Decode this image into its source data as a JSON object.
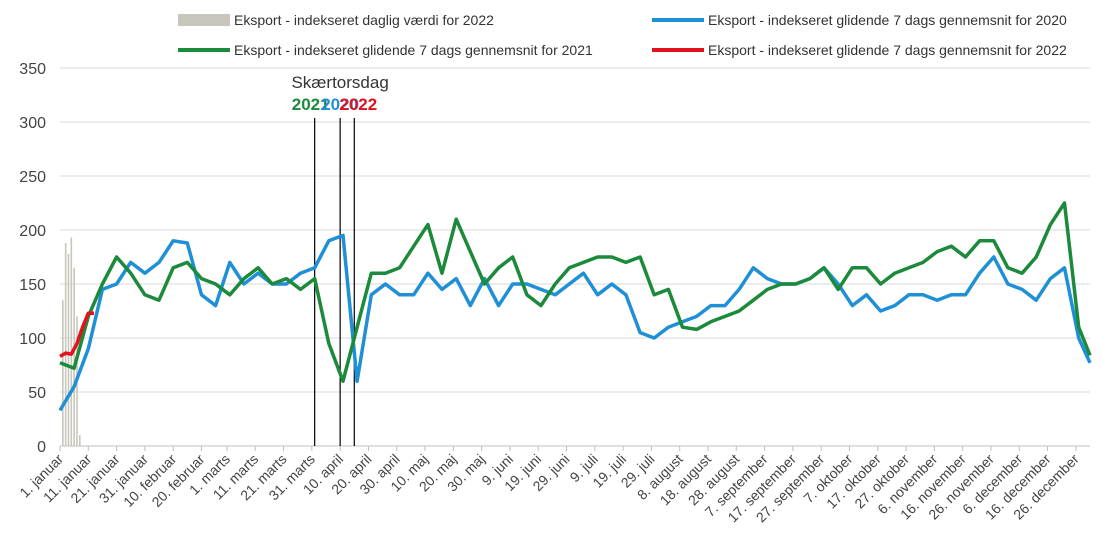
{
  "chart_data": {
    "type": "line",
    "xlim": [
      0,
      364
    ],
    "ylim": [
      0,
      350
    ],
    "yticks": [
      0,
      50,
      100,
      150,
      200,
      250,
      300,
      350
    ],
    "grid": true,
    "xticks": [
      {
        "value": 0,
        "label": "1. januar"
      },
      {
        "value": 10,
        "label": "11. januar"
      },
      {
        "value": 20,
        "label": "21. januar"
      },
      {
        "value": 30,
        "label": "31. januar"
      },
      {
        "value": 40,
        "label": "10. februar"
      },
      {
        "value": 50,
        "label": "20. februar"
      },
      {
        "value": 59,
        "label": "1. marts"
      },
      {
        "value": 69,
        "label": "11. marts"
      },
      {
        "value": 79,
        "label": "21. marts"
      },
      {
        "value": 89,
        "label": "31. marts"
      },
      {
        "value": 99,
        "label": "10. april"
      },
      {
        "value": 109,
        "label": "20. april"
      },
      {
        "value": 119,
        "label": "30. april"
      },
      {
        "value": 129,
        "label": "10. maj"
      },
      {
        "value": 139,
        "label": "20. maj"
      },
      {
        "value": 149,
        "label": "30. maj"
      },
      {
        "value": 159,
        "label": "9. juni"
      },
      {
        "value": 169,
        "label": "19. juni"
      },
      {
        "value": 179,
        "label": "29. juni"
      },
      {
        "value": 189,
        "label": "9. juli"
      },
      {
        "value": 199,
        "label": "19. juli"
      },
      {
        "value": 209,
        "label": "29. juli"
      },
      {
        "value": 219,
        "label": "8. august"
      },
      {
        "value": 229,
        "label": "18. august"
      },
      {
        "value": 239,
        "label": "28. august"
      },
      {
        "value": 249,
        "label": "7. september"
      },
      {
        "value": 259,
        "label": "17. september"
      },
      {
        "value": 269,
        "label": "27. september"
      },
      {
        "value": 279,
        "label": "7. oktober"
      },
      {
        "value": 289,
        "label": "17. oktober"
      },
      {
        "value": 299,
        "label": "27. oktober"
      },
      {
        "value": 309,
        "label": "6. november"
      },
      {
        "value": 319,
        "label": "16. november"
      },
      {
        "value": 329,
        "label": "26. november"
      },
      {
        "value": 339,
        "label": "6. december"
      },
      {
        "value": 349,
        "label": "16. december"
      },
      {
        "value": 359,
        "label": "26. december"
      }
    ],
    "series": [
      {
        "name": "Eksport - indekseret daglig værdi for 2022",
        "type": "bar",
        "color": "#c9c6bb",
        "x": [
          1,
          2,
          3,
          4,
          5,
          6,
          7
        ],
        "values": [
          135,
          188,
          178,
          193,
          165,
          120,
          10
        ]
      },
      {
        "name": "Eksport - indekseret glidende 7 dags gennemsnit for 2020",
        "type": "line",
        "color": "#1f8fd6",
        "x": [
          0,
          5,
          10,
          15,
          20,
          25,
          30,
          35,
          40,
          45,
          50,
          55,
          60,
          65,
          70,
          75,
          80,
          85,
          90,
          95,
          100,
          105,
          110,
          115,
          120,
          125,
          130,
          135,
          140,
          145,
          150,
          155,
          160,
          165,
          170,
          175,
          180,
          185,
          190,
          195,
          200,
          205,
          210,
          215,
          220,
          225,
          230,
          235,
          240,
          245,
          250,
          255,
          260,
          265,
          270,
          275,
          280,
          285,
          290,
          295,
          300,
          305,
          310,
          315,
          320,
          325,
          330,
          335,
          340,
          345,
          350,
          355,
          360,
          364
        ],
        "values": [
          33,
          55,
          90,
          145,
          150,
          170,
          160,
          170,
          190,
          188,
          140,
          130,
          170,
          150,
          160,
          150,
          150,
          160,
          165,
          190,
          195,
          60,
          140,
          150,
          140,
          140,
          160,
          145,
          155,
          130,
          155,
          130,
          150,
          150,
          145,
          140,
          150,
          160,
          140,
          150,
          140,
          105,
          100,
          110,
          115,
          120,
          130,
          130,
          145,
          165,
          155,
          150,
          150,
          155,
          165,
          150,
          130,
          140,
          125,
          130,
          140,
          140,
          135,
          140,
          140,
          160,
          175,
          150,
          145,
          135,
          155,
          165,
          100,
          77
        ]
      },
      {
        "name": "Eksport - indekseret glidende 7 dags gennemsnit for 2021",
        "type": "line",
        "color": "#1b8a3a",
        "x": [
          0,
          5,
          10,
          15,
          20,
          25,
          30,
          35,
          40,
          45,
          50,
          55,
          60,
          65,
          70,
          75,
          80,
          85,
          90,
          95,
          100,
          105,
          110,
          115,
          120,
          125,
          130,
          135,
          140,
          145,
          150,
          155,
          160,
          165,
          170,
          175,
          180,
          185,
          190,
          195,
          200,
          205,
          210,
          215,
          220,
          225,
          230,
          235,
          240,
          245,
          250,
          255,
          260,
          265,
          270,
          275,
          280,
          285,
          290,
          295,
          300,
          305,
          310,
          315,
          320,
          325,
          330,
          335,
          340,
          345,
          350,
          355,
          360,
          364
        ],
        "values": [
          77,
          72,
          120,
          150,
          175,
          160,
          140,
          135,
          165,
          170,
          155,
          150,
          140,
          155,
          165,
          150,
          155,
          145,
          155,
          95,
          60,
          110,
          160,
          160,
          165,
          185,
          205,
          160,
          210,
          180,
          150,
          165,
          175,
          140,
          130,
          150,
          165,
          170,
          175,
          175,
          170,
          175,
          140,
          145,
          110,
          108,
          115,
          120,
          125,
          135,
          145,
          150,
          150,
          155,
          165,
          145,
          165,
          165,
          150,
          160,
          165,
          170,
          180,
          185,
          175,
          190,
          190,
          165,
          160,
          175,
          205,
          225,
          110,
          84
        ]
      },
      {
        "name": "Eksport - indekseret glidende 7 dags gennemsnit for 2022",
        "type": "line",
        "color": "#e3101d",
        "x": [
          0,
          2,
          4,
          6,
          8,
          10,
          12
        ],
        "values": [
          83,
          86,
          85,
          95,
          110,
          123,
          123
        ]
      }
    ],
    "annotations": {
      "title": "Skærtorsdag",
      "labels": [
        {
          "text": "2021",
          "x": 90,
          "color": "#1b8a3a"
        },
        {
          "text": "2020",
          "x": 99,
          "color": "#1f8fd6"
        },
        {
          "text": "2022",
          "x": 104,
          "color": "#e3101d"
        }
      ]
    }
  }
}
